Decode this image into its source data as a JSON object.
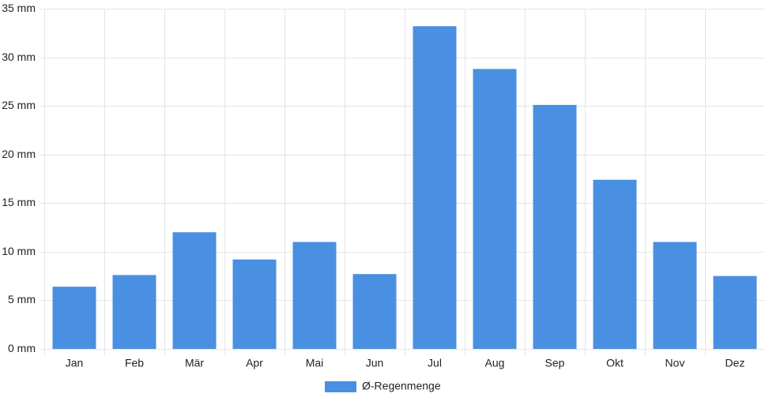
{
  "chart_data": {
    "type": "bar",
    "categories": [
      "Jan",
      "Feb",
      "Mär",
      "Apr",
      "Mai",
      "Jun",
      "Jul",
      "Aug",
      "Sep",
      "Okt",
      "Nov",
      "Dez"
    ],
    "series": [
      {
        "name": "Ø-Regenmenge",
        "color": "#4a90e2",
        "values": [
          6.4,
          7.6,
          12.0,
          9.2,
          11.0,
          7.7,
          33.2,
          28.8,
          25.1,
          17.4,
          11.0,
          7.5
        ]
      }
    ],
    "ylim": [
      0,
      35
    ],
    "yticks": [
      {
        "value": 0,
        "label": "0 mm"
      },
      {
        "value": 5,
        "label": "5 mm"
      },
      {
        "value": 10,
        "label": "10 mm"
      },
      {
        "value": 15,
        "label": "15 mm"
      },
      {
        "value": 20,
        "label": "20 mm"
      },
      {
        "value": 25,
        "label": "25 mm"
      },
      {
        "value": 30,
        "label": "30 mm"
      },
      {
        "value": 35,
        "label": "35 mm"
      }
    ],
    "grid": true,
    "legend": "bottom"
  }
}
